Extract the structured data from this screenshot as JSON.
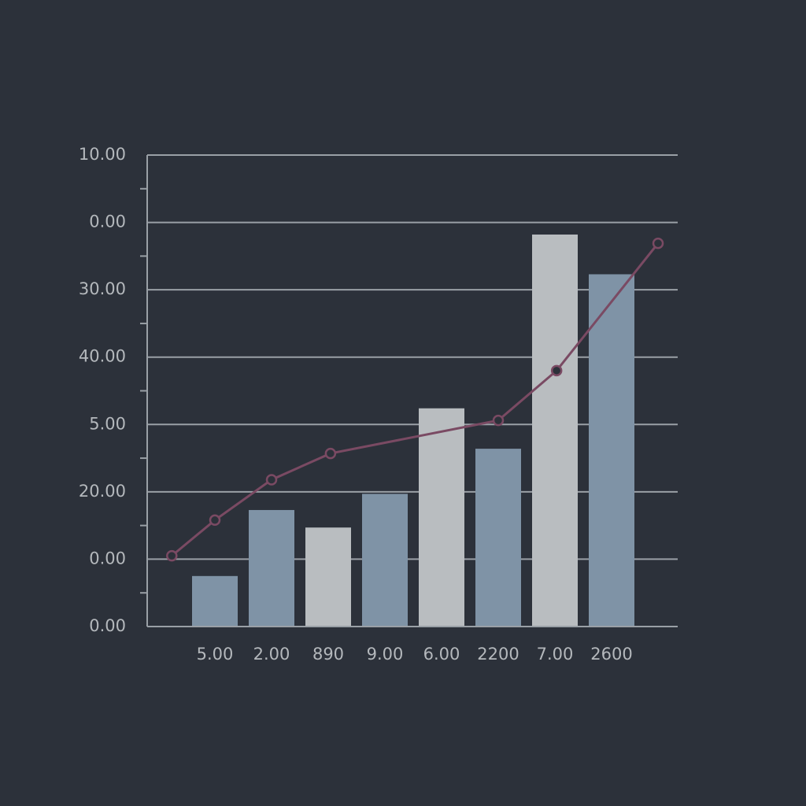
{
  "chart_data": {
    "type": "bar",
    "categories": [
      "5.00",
      "2.00",
      "890",
      "9.00",
      "6.00",
      "2200",
      "7.00",
      "2600"
    ],
    "series": [
      {
        "type": "bar",
        "values": [
          0.75,
          1.73,
          1.47,
          1.97,
          3.24,
          2.64,
          5.82,
          5.23
        ],
        "colors": [
          "#7f93a6",
          "#7f93a6",
          "#b9bdc0",
          "#7f93a6",
          "#b9bdc0",
          "#7f93a6",
          "#b9bdc0",
          "#7f93a6"
        ]
      },
      {
        "type": "line",
        "color": "#7a4a63",
        "x": [
          -0.76,
          0,
          1,
          2.04,
          5,
          6.03,
          7.82
        ],
        "values": [
          1.05,
          1.58,
          2.18,
          2.57,
          3.06,
          3.8,
          5.69
        ]
      }
    ],
    "ylim": [
      0,
      7
    ],
    "yticks": [
      {
        "value": 0,
        "label": "0.00"
      },
      {
        "value": 1,
        "label": "0.00"
      },
      {
        "value": 2,
        "label": "20.00"
      },
      {
        "value": 3,
        "label": "5.00"
      },
      {
        "value": 4,
        "label": "40.00"
      },
      {
        "value": 5,
        "label": "30.00"
      },
      {
        "value": 6,
        "label": "0.00"
      },
      {
        "value": 7,
        "label": "10.00"
      }
    ],
    "grid": true
  }
}
